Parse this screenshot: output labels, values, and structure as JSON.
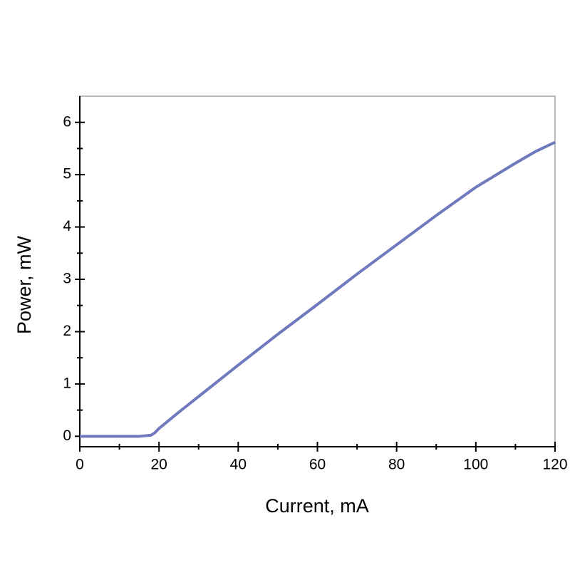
{
  "chart_data": {
    "type": "line",
    "x_label": "Current, mA",
    "y_label": "Power, mW",
    "x": [
      0,
      5,
      10,
      15,
      18,
      19,
      20,
      25,
      30,
      40,
      50,
      60,
      70,
      80,
      90,
      100,
      110,
      115,
      120
    ],
    "series": [
      {
        "name": "Power",
        "color": "#6f7abd",
        "values": [
          0,
          0,
          0,
          0,
          0.02,
          0.07,
          0.15,
          0.46,
          0.76,
          1.36,
          1.95,
          2.52,
          3.1,
          3.66,
          4.22,
          4.76,
          5.22,
          5.44,
          5.62
        ]
      }
    ],
    "xlim": [
      0,
      120
    ],
    "xticks": [
      0,
      20,
      40,
      60,
      80,
      100,
      120
    ],
    "xminorticks": [
      10,
      30,
      50,
      70,
      90,
      110
    ],
    "ylim": [
      -0.2,
      6.5
    ],
    "yticks": [
      0,
      1,
      2,
      3,
      4,
      5,
      6
    ],
    "yminorticks": [
      0.5,
      1.5,
      2.5,
      3.5,
      4.5,
      5.5
    ],
    "grid": false
  }
}
